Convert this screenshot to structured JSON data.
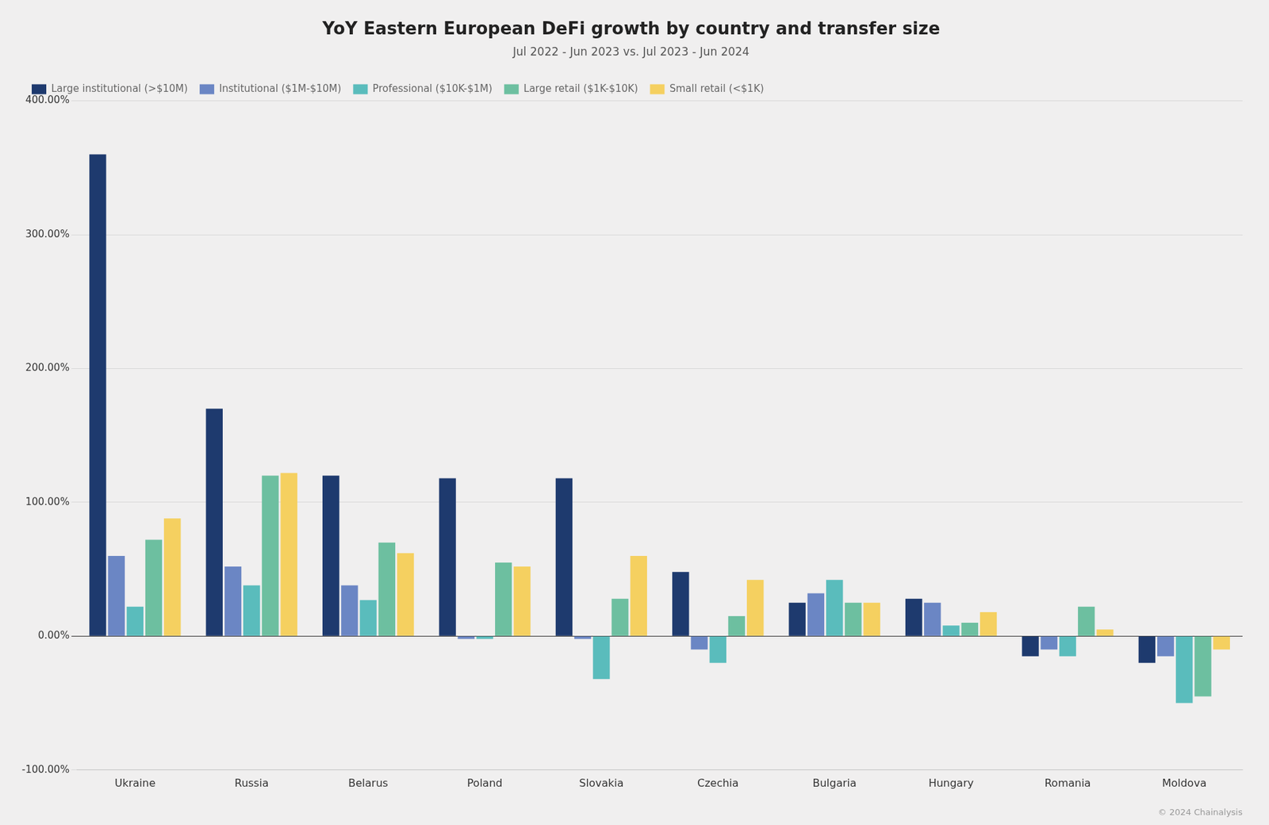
{
  "chart_data": {
    "type": "bar",
    "title": "YoY Eastern European DeFi growth by country and transfer size",
    "subtitle": "Jul 2022 - Jun 2023 vs. Jul 2023 - Jun 2024",
    "annotation": "© 2024 Chainalysis",
    "categories": [
      "Ukraine",
      "Russia",
      "Belarus",
      "Poland",
      "Slovakia",
      "Czechia",
      "Bulgaria",
      "Hungary",
      "Romania",
      "Moldova"
    ],
    "series": [
      {
        "name": "Large institutional (>$10M)",
        "color": "#1e3a6e",
        "values": [
          360,
          170,
          120,
          118,
          118,
          48,
          25,
          28,
          -15,
          -20
        ]
      },
      {
        "name": "Institutional ($1M-$10M)",
        "color": "#6b86c4",
        "values": [
          60,
          52,
          38,
          -2,
          -2,
          -10,
          32,
          25,
          -10,
          -15
        ]
      },
      {
        "name": "Professional ($10K-$1M)",
        "color": "#5abcbc",
        "values": [
          22,
          38,
          27,
          -2,
          -32,
          -20,
          42,
          8,
          -15,
          -50
        ]
      },
      {
        "name": "Large retail ($1K-$10K)",
        "color": "#6dbfa0",
        "values": [
          72,
          120,
          70,
          55,
          28,
          15,
          25,
          10,
          22,
          -45
        ]
      },
      {
        "name": "Small retail (<$1K)",
        "color": "#f5d060",
        "values": [
          88,
          122,
          62,
          52,
          60,
          42,
          25,
          18,
          5,
          -10
        ]
      }
    ],
    "ylim": [
      -100,
      400
    ],
    "yticks": [
      {
        "value": -100,
        "label": "-100.00%"
      },
      {
        "value": 0,
        "label": "0.00%"
      },
      {
        "value": 100,
        "label": "100.00%"
      },
      {
        "value": 200,
        "label": "200.00%"
      },
      {
        "value": 300,
        "label": "300.00%"
      },
      {
        "value": 400,
        "label": "400.00%"
      }
    ],
    "grid": true,
    "legend": "upper left"
  }
}
